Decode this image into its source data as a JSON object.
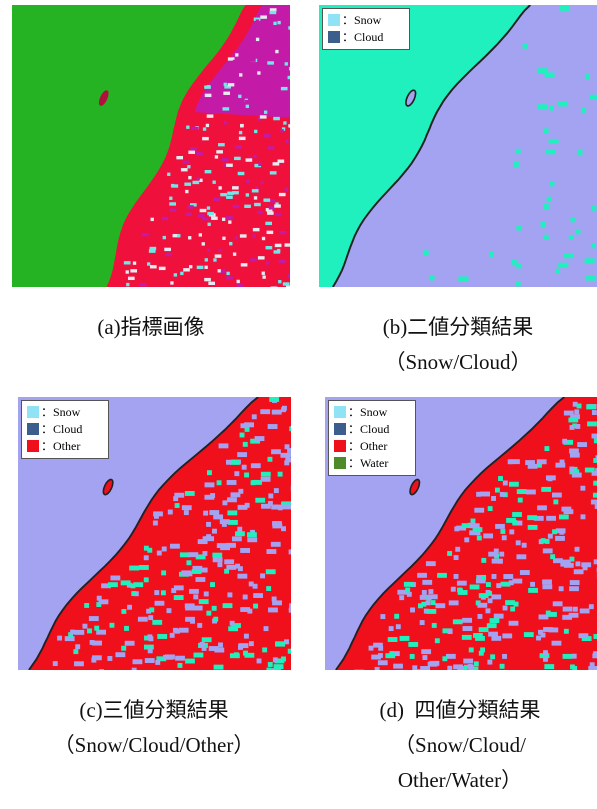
{
  "panels": [
    {
      "caption": [
        "(a)指標画像"
      ],
      "legend": []
    },
    {
      "caption": [
        "(b)二値分類結果",
        "（Snow/Cloud）"
      ],
      "legend": [
        {
          "label": "：Snow",
          "color": "#8fe3f5"
        },
        {
          "label": "：Cloud",
          "color": "#3b5e8c"
        }
      ]
    },
    {
      "caption": [
        "(c)三値分類結果",
        "（Snow/Cloud/Other）"
      ],
      "legend": [
        {
          "label": "：Snow",
          "color": "#8fe3f5"
        },
        {
          "label": "：Cloud",
          "color": "#3b5e8c"
        },
        {
          "label": "：Other",
          "color": "#f0101c"
        }
      ]
    },
    {
      "caption": [
        "(d)  四値分類結果",
        "（Snow/Cloud/",
        "Other/Water）"
      ],
      "legend": [
        {
          "label": "：Snow",
          "color": "#8fe3f5"
        },
        {
          "label": "：Cloud",
          "color": "#3b5e8c"
        },
        {
          "label": "：Other",
          "color": "#f0101c"
        },
        {
          "label": "：Water",
          "color": "#4e8a2a"
        }
      ]
    }
  ]
}
